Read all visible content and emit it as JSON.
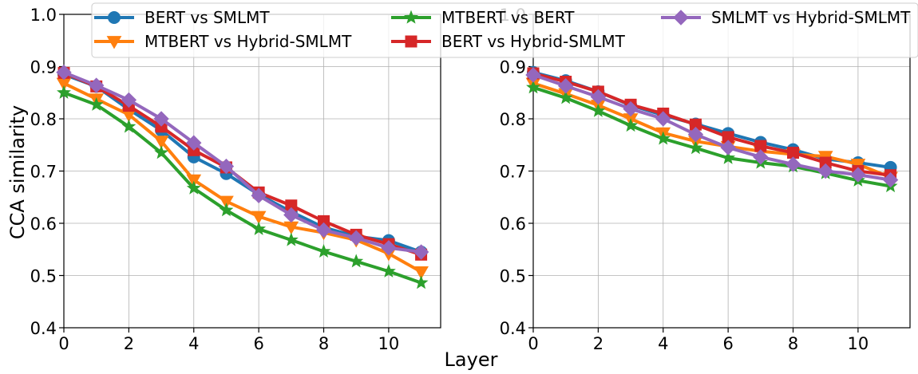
{
  "chart_data": {
    "type": "line",
    "xlabel": "Layer",
    "ylabel": "CCA similarity",
    "xlim": [
      0,
      11.6
    ],
    "ylim": [
      0.4,
      1.0
    ],
    "xticks": [
      "0",
      "2",
      "4",
      "6",
      "8",
      "10"
    ],
    "yticks": [
      "0.4",
      "0.5",
      "0.6",
      "0.7",
      "0.8",
      "0.9",
      "1.0"
    ],
    "grid": true,
    "legend": {
      "placement": "top",
      "entries": [
        "BERT vs SMLMT",
        "MTBERT vs Hybrid-SMLMT",
        "MTBERT vs BERT",
        "BERT vs Hybrid-SMLMT",
        "SMLMT vs Hybrid-SMLMT"
      ]
    },
    "series_style": [
      {
        "name": "BERT vs SMLMT",
        "color": "#1f77b4",
        "marker": "circle"
      },
      {
        "name": "MTBERT vs Hybrid-SMLMT",
        "color": "#ff7f0e",
        "marker": "triangle-down"
      },
      {
        "name": "MTBERT vs BERT",
        "color": "#2ca02c",
        "marker": "star"
      },
      {
        "name": "BERT vs Hybrid-SMLMT",
        "color": "#d62728",
        "marker": "square"
      },
      {
        "name": "SMLMT vs Hybrid-SMLMT",
        "color": "#9467bd",
        "marker": "diamond"
      }
    ],
    "panels": [
      {
        "x": [
          0,
          1,
          2,
          3,
          4,
          5,
          6,
          7,
          8,
          9,
          10,
          11
        ],
        "series": [
          {
            "name": "BERT vs SMLMT",
            "values": [
              0.885,
              0.862,
              0.818,
              0.778,
              0.727,
              0.695,
              0.655,
              0.622,
              0.592,
              0.575,
              0.567,
              0.545
            ]
          },
          {
            "name": "MTBERT vs Hybrid-SMLMT",
            "values": [
              0.868,
              0.838,
              0.808,
              0.757,
              0.683,
              0.642,
              0.613,
              0.593,
              0.582,
              0.568,
              0.542,
              0.507
            ]
          },
          {
            "name": "MTBERT vs BERT",
            "values": [
              0.85,
              0.827,
              0.785,
              0.735,
              0.667,
              0.625,
              0.589,
              0.568,
              0.546,
              0.527,
              0.508,
              0.486
            ]
          },
          {
            "name": "BERT vs Hybrid-SMLMT",
            "values": [
              0.888,
              0.862,
              0.825,
              0.785,
              0.74,
              0.707,
              0.659,
              0.634,
              0.604,
              0.578,
              0.56,
              0.54
            ]
          },
          {
            "name": "SMLMT vs Hybrid-SMLMT",
            "values": [
              0.889,
              0.864,
              0.836,
              0.8,
              0.754,
              0.709,
              0.653,
              0.616,
              0.587,
              0.572,
              0.553,
              0.545
            ]
          }
        ]
      },
      {
        "x": [
          0,
          1,
          2,
          3,
          4,
          5,
          6,
          7,
          8,
          9,
          10,
          11
        ],
        "series": [
          {
            "name": "BERT vs SMLMT",
            "values": [
              0.889,
              0.873,
              0.852,
              0.826,
              0.807,
              0.79,
              0.772,
              0.755,
              0.741,
              0.723,
              0.716,
              0.707
            ]
          },
          {
            "name": "MTBERT vs Hybrid-SMLMT",
            "values": [
              0.868,
              0.848,
              0.826,
              0.8,
              0.773,
              0.757,
              0.747,
              0.738,
              0.732,
              0.728,
              0.713,
              0.688
            ]
          },
          {
            "name": "MTBERT vs BERT",
            "values": [
              0.86,
              0.84,
              0.815,
              0.787,
              0.762,
              0.744,
              0.725,
              0.716,
              0.709,
              0.696,
              0.682,
              0.671
            ]
          },
          {
            "name": "BERT vs Hybrid-SMLMT",
            "values": [
              0.887,
              0.871,
              0.852,
              0.827,
              0.81,
              0.789,
              0.765,
              0.748,
              0.735,
              0.716,
              0.7,
              0.692
            ]
          },
          {
            "name": "SMLMT vs Hybrid-SMLMT",
            "values": [
              0.884,
              0.863,
              0.842,
              0.819,
              0.8,
              0.77,
              0.745,
              0.727,
              0.713,
              0.7,
              0.693,
              0.683
            ]
          }
        ]
      }
    ]
  }
}
